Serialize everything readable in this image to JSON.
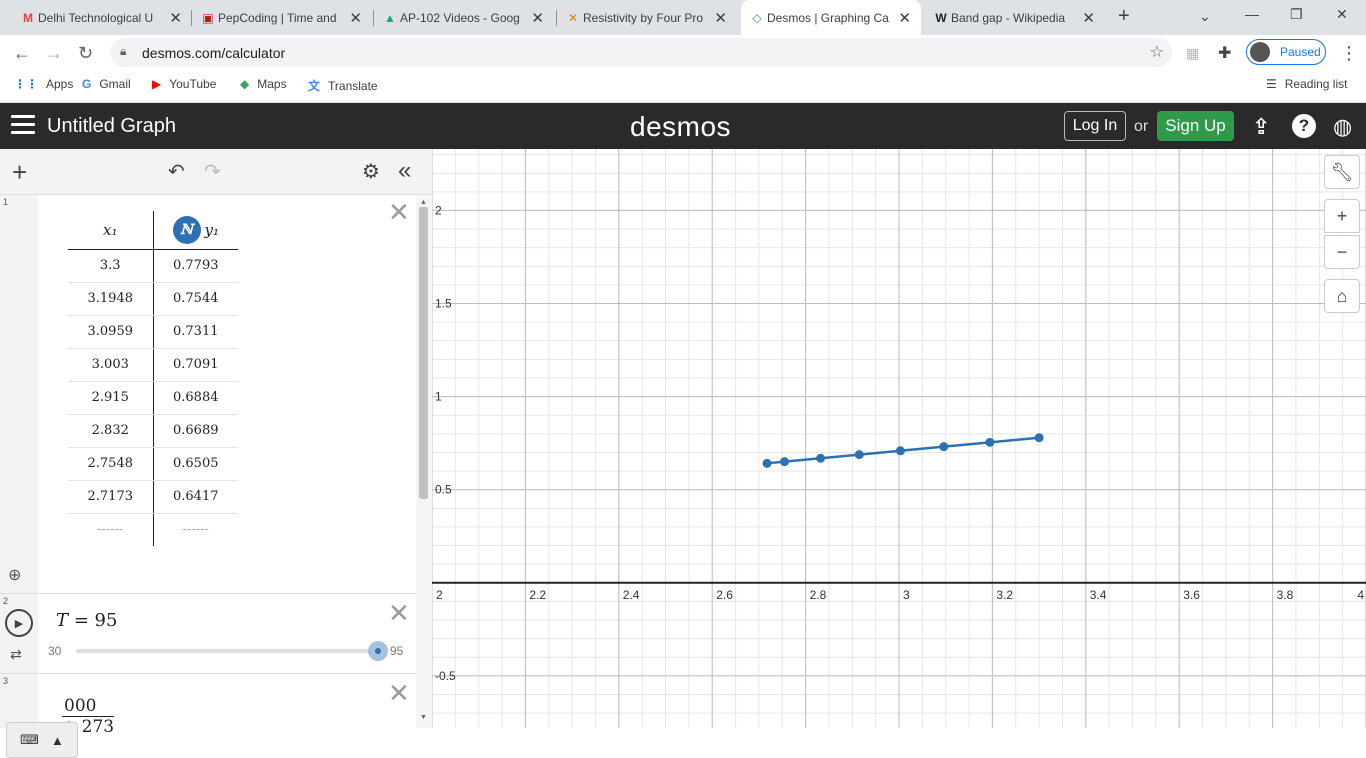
{
  "browser": {
    "tabs": [
      {
        "title": "Delhi Technological U",
        "icon": "gmail-icon",
        "glyph": "M",
        "color": "#ea4335"
      },
      {
        "title": "PepCoding | Time and",
        "icon": "pepcoding-icon",
        "glyph": "▣",
        "color": "#b71c1c"
      },
      {
        "title": "AP-102 Videos - Goog",
        "icon": "google-drive-icon",
        "glyph": "▲",
        "color": "#1fa463"
      },
      {
        "title": "Resistivity by Four Pro",
        "icon": "vlab-icon",
        "glyph": "✕",
        "color": "#f57c00"
      },
      {
        "title": "Desmos | Graphing Ca",
        "icon": "desmos-icon",
        "glyph": "◇",
        "color": "#2f9b4a"
      },
      {
        "title": "Band gap - Wikipedia",
        "icon": "wikipedia-icon",
        "glyph": "W",
        "color": "#222222"
      }
    ],
    "active_tab": 4,
    "url": "desmos.com/calculator",
    "profile_status": "Paused",
    "bookmarks": [
      {
        "label": "Apps",
        "glyph": "⋮⋮",
        "color": "#1a73e8"
      },
      {
        "label": "Gmail",
        "glyph": "G",
        "color": "#4285f4"
      },
      {
        "label": "YouTube",
        "glyph": "▶",
        "color": "#ff0000"
      },
      {
        "label": "Maps",
        "glyph": "◆",
        "color": "#34a853"
      },
      {
        "label": "Translate",
        "glyph": "文",
        "color": "#4285f4"
      }
    ],
    "reading_list": "Reading list"
  },
  "desmos": {
    "graph_title": "Untitled Graph",
    "logo": "desmos",
    "login_label": "Log In",
    "or_label": "or",
    "signup_label": "Sign Up"
  },
  "expressions": {
    "table": {
      "index": "1",
      "col1_header": "x₁",
      "col2_header": "y₁",
      "rows": [
        [
          "3.3",
          "0.7793"
        ],
        [
          "3.1948",
          "0.7544"
        ],
        [
          "3.0959",
          "0.7311"
        ],
        [
          "3.003",
          "0.7091"
        ],
        [
          "2.915",
          "0.6884"
        ],
        [
          "2.832",
          "0.6689"
        ],
        [
          "2.7548",
          "0.6505"
        ],
        [
          "2.7173",
          "0.6417"
        ]
      ],
      "empty_cell": "------"
    },
    "slider": {
      "index": "2",
      "var": "T",
      "equals": " = ",
      "value": "95",
      "min": "30",
      "max": "95",
      "fraction": 1.0
    },
    "expr3": {
      "index": "3",
      "numerator": "000",
      "denominator": "+ 273"
    }
  },
  "chart_data": {
    "type": "line",
    "x": [
      2.7173,
      2.7548,
      2.832,
      2.915,
      3.003,
      3.0959,
      3.1948,
      3.3
    ],
    "y": [
      0.6417,
      0.6505,
      0.6689,
      0.6884,
      0.7091,
      0.7311,
      0.7544,
      0.7793
    ],
    "xlim": [
      2.0,
      4.0
    ],
    "ylim": [
      -0.78,
      2.33
    ],
    "x_ticks": [
      "2",
      "2.2",
      "2.4",
      "2.6",
      "2.8",
      "3",
      "3.2",
      "3.4",
      "3.6",
      "3.8",
      "4"
    ],
    "y_ticks": [
      "2",
      "1.5",
      "1",
      "0.5",
      "-0.5"
    ],
    "series_color": "#2d70b3",
    "grid": true
  }
}
